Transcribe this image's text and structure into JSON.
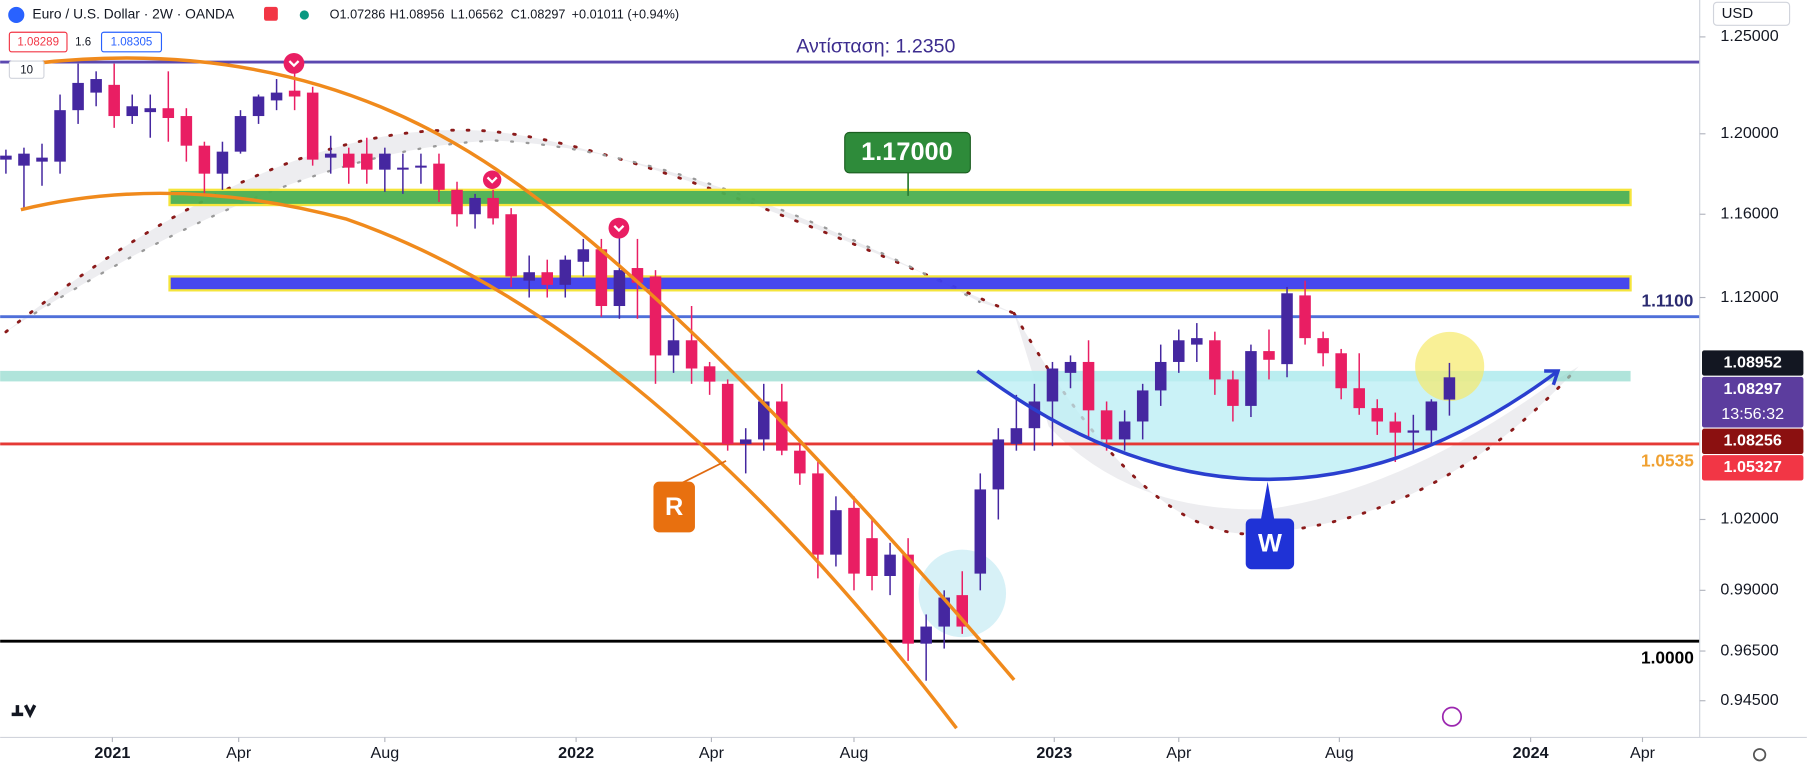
{
  "header": {
    "title": "Euro / U.S. Dollar · 2W · OANDA",
    "open": "O1.07286",
    "high": "H1.08956",
    "low": "L1.06562",
    "close": "C1.08297",
    "change": "+0.01011 (+0.94%)",
    "sell": "1.08289",
    "spread": "1.6",
    "buy": "1.08305",
    "indicator_count": "10",
    "currency": "USD"
  },
  "annotations": {
    "resistance": "Αντίσταση: 1.2350",
    "target": "1.17000",
    "level_1100": "1.1100",
    "level_10535": "1.0535",
    "level_1": "1.0000",
    "r": "R",
    "w": "W"
  },
  "chart_data": {
    "type": "candlestick",
    "log_scale": true,
    "grid": false,
    "up_color": "#4527a0",
    "down_color": "#e91e63",
    "open": [
      1.187,
      1.184,
      1.186,
      1.186,
      1.212,
      1.221,
      1.225,
      1.209,
      1.211,
      1.213,
      1.209,
      1.194,
      1.18,
      1.191,
      1.209,
      1.217,
      1.222,
      1.221,
      1.188,
      1.19,
      1.19,
      1.182,
      1.182,
      1.183,
      1.185,
      1.172,
      1.16,
      1.168,
      1.16,
      1.128,
      1.132,
      1.126,
      1.137,
      1.143,
      1.116,
      1.134,
      1.13,
      1.093,
      1.1,
      1.088,
      1.08,
      1.053,
      1.055,
      1.072,
      1.05,
      1.04,
      1.005,
      1.025,
      1.012,
      0.996,
      1.005,
      0.968,
      0.975,
      0.988,
      0.997,
      1.033,
      1.053,
      1.06,
      1.072,
      1.085,
      1.09,
      1.068,
      1.055,
      1.063,
      1.077,
      1.09,
      1.098,
      1.1,
      1.082,
      1.07,
      1.095,
      1.089,
      1.121,
      1.101,
      1.094,
      1.078,
      1.069,
      1.063,
      1.058,
      1.059,
      1.07286
    ],
    "high": [
      1.192,
      1.193,
      1.195,
      1.22,
      1.236,
      1.232,
      1.236,
      1.22,
      1.22,
      1.232,
      1.213,
      1.196,
      1.196,
      1.212,
      1.22,
      1.228,
      1.235,
      1.224,
      1.199,
      1.193,
      1.198,
      1.193,
      1.19,
      1.19,
      1.19,
      1.176,
      1.17,
      1.172,
      1.163,
      1.14,
      1.138,
      1.14,
      1.148,
      1.148,
      1.15,
      1.148,
      1.133,
      1.11,
      1.116,
      1.09,
      1.082,
      1.06,
      1.08,
      1.08,
      1.055,
      1.045,
      1.03,
      1.03,
      1.02,
      1.01,
      1.012,
      0.98,
      0.99,
      0.998,
      1.04,
      1.06,
      1.075,
      1.08,
      1.09,
      1.093,
      1.1,
      1.072,
      1.068,
      1.08,
      1.098,
      1.105,
      1.108,
      1.104,
      1.086,
      1.098,
      1.105,
      1.125,
      1.128,
      1.104,
      1.096,
      1.094,
      1.073,
      1.067,
      1.066,
      1.073,
      1.08956
    ],
    "low": [
      1.18,
      1.162,
      1.174,
      1.18,
      1.205,
      1.214,
      1.203,
      1.205,
      1.198,
      1.196,
      1.186,
      1.17,
      1.172,
      1.19,
      1.205,
      1.212,
      1.212,
      1.184,
      1.18,
      1.175,
      1.175,
      1.171,
      1.17,
      1.175,
      1.166,
      1.154,
      1.153,
      1.155,
      1.125,
      1.12,
      1.12,
      1.12,
      1.13,
      1.111,
      1.11,
      1.11,
      1.08,
      1.085,
      1.08,
      1.075,
      1.05,
      1.04,
      1.05,
      1.048,
      1.035,
      0.995,
      1.0,
      0.99,
      0.99,
      0.988,
      0.961,
      0.953,
      0.966,
      0.972,
      0.99,
      1.02,
      1.05,
      1.05,
      1.052,
      1.078,
      1.055,
      1.05,
      1.05,
      1.055,
      1.07,
      1.085,
      1.09,
      1.075,
      1.063,
      1.065,
      1.082,
      1.083,
      1.098,
      1.088,
      1.073,
      1.066,
      1.057,
      1.045,
      1.05,
      1.052,
      1.06562
    ],
    "close": [
      1.189,
      1.19,
      1.188,
      1.212,
      1.226,
      1.228,
      1.209,
      1.214,
      1.213,
      1.208,
      1.194,
      1.18,
      1.191,
      1.209,
      1.219,
      1.221,
      1.219,
      1.187,
      1.19,
      1.183,
      1.182,
      1.19,
      1.183,
      1.184,
      1.172,
      1.16,
      1.168,
      1.158,
      1.13,
      1.132,
      1.126,
      1.138,
      1.143,
      1.116,
      1.133,
      1.127,
      1.093,
      1.1,
      1.087,
      1.081,
      1.053,
      1.055,
      1.072,
      1.05,
      1.04,
      1.005,
      1.024,
      0.997,
      0.996,
      1.005,
      0.968,
      0.975,
      0.987,
      0.975,
      1.033,
      1.055,
      1.06,
      1.072,
      1.087,
      1.09,
      1.068,
      1.055,
      1.063,
      1.077,
      1.09,
      1.1,
      1.101,
      1.082,
      1.07,
      1.095,
      1.091,
      1.122,
      1.101,
      1.094,
      1.078,
      1.069,
      1.063,
      1.058,
      1.059,
      1.072,
      1.08297
    ],
    "xlim": [
      -0.32,
      93.87
    ],
    "xticks": [
      {
        "value": 5.9,
        "label": "2021"
      },
      {
        "value": 12.9,
        "label": "Apr"
      },
      {
        "value": 21.0,
        "label": "Aug"
      },
      {
        "value": 31.6,
        "label": "2022"
      },
      {
        "value": 39.1,
        "label": "Apr"
      },
      {
        "value": 47.0,
        "label": "Aug"
      },
      {
        "value": 58.1,
        "label": "2023"
      },
      {
        "value": 65.0,
        "label": "Apr"
      },
      {
        "value": 73.9,
        "label": "Aug"
      },
      {
        "value": 84.5,
        "label": "2024"
      },
      {
        "value": 90.7,
        "label": "Apr"
      }
    ],
    "ylim": [
      0.9305,
      1.2561
    ],
    "yticks": [
      {
        "value": 1.25,
        "label": "1.25000"
      },
      {
        "value": 1.2,
        "label": "1.20000"
      },
      {
        "value": 1.16,
        "label": "1.16000"
      },
      {
        "value": 1.12,
        "label": "1.12000"
      },
      {
        "value": 1.02,
        "label": "1.02000"
      },
      {
        "value": 0.99,
        "label": "0.99000"
      },
      {
        "value": 0.965,
        "label": "0.96500"
      },
      {
        "value": 0.945,
        "label": "0.94500"
      }
    ],
    "levels": [
      {
        "value": 1.2368,
        "color": "#5b48b0"
      },
      {
        "value": 1.111,
        "color": "#4f6fd9"
      },
      {
        "value": 1.053,
        "color": "#e53935"
      },
      {
        "value": 0.969,
        "color": "#000000"
      }
    ],
    "zones": [
      {
        "from": 1.1645,
        "to": 1.172,
        "color": "#4caf50",
        "extend_left": false
      },
      {
        "from": 1.1234,
        "to": 1.13,
        "color": "#3d3ded",
        "extend_left": false
      },
      {
        "from": 1.0811,
        "to": 1.0859,
        "color": "#8fd8cc",
        "extend_left": true
      }
    ],
    "price_badges": [
      {
        "value": 1.08952,
        "color": "#131722"
      },
      {
        "value": 1.08297,
        "color": "#5c3d9e",
        "countdown": "13:56:32"
      },
      {
        "value": 1.08256,
        "color": "#8b1010"
      },
      {
        "value": 1.05327,
        "color": "#f23645"
      }
    ]
  }
}
